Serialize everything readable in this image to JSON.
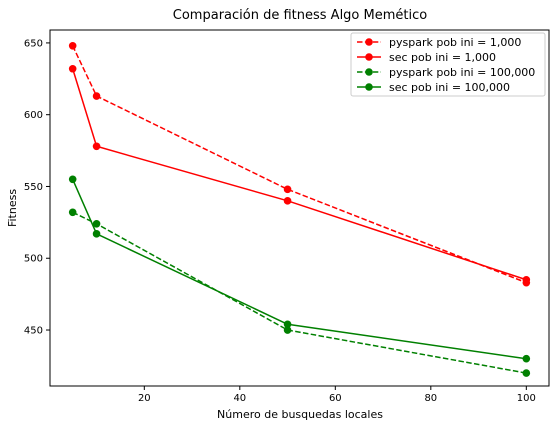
{
  "chart_data": {
    "type": "line",
    "title": "Comparación de fitness Algo Memético",
    "xlabel": "Número de busquedas locales",
    "ylabel": "Fitness",
    "xlim": [
      0.25,
      104.75
    ],
    "ylim": [
      411,
      659
    ],
    "xticks": [
      20,
      40,
      60,
      80,
      100
    ],
    "yticks": [
      450,
      500,
      550,
      600,
      650
    ],
    "grid": false,
    "legend_position": "top-right",
    "series": [
      {
        "name": "pyspark pob ini = 1,000",
        "color": "#ff0000",
        "dash": "dashed",
        "x": [
          5,
          10,
          50,
          100
        ],
        "y": [
          648,
          613,
          548,
          483
        ]
      },
      {
        "name": "sec pob ini = 1,000",
        "color": "#ff0000",
        "dash": "solid",
        "x": [
          5,
          10,
          50,
          100
        ],
        "y": [
          632,
          578,
          540,
          485
        ]
      },
      {
        "name": "pyspark pob ini = 100,000",
        "color": "#008000",
        "dash": "dashed",
        "x": [
          5,
          10,
          50,
          100
        ],
        "y": [
          532,
          524,
          450,
          420
        ]
      },
      {
        "name": "sec pob ini = 100,000",
        "color": "#008000",
        "dash": "solid",
        "x": [
          5,
          10,
          50,
          100
        ],
        "y": [
          555,
          517,
          454,
          430
        ]
      }
    ]
  }
}
